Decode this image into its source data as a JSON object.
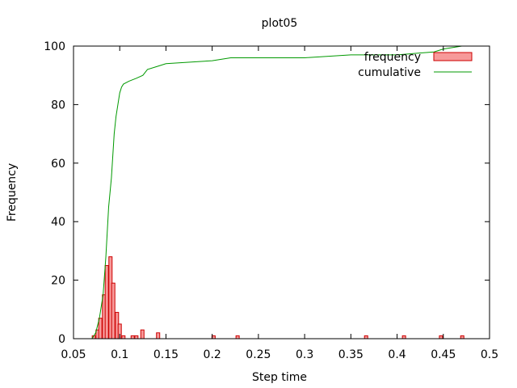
{
  "chart_data": {
    "type": "bar",
    "title": "plot05",
    "xlabel": "Step time",
    "ylabel": "Frequency",
    "xlim": [
      0.05,
      0.5
    ],
    "ylim": [
      0,
      100
    ],
    "grid": false,
    "legend_position": "top-right",
    "x_ticks": [
      "0.05",
      "0.1",
      "0.15",
      "0.2",
      "0.25",
      "0.3",
      "0.35",
      "0.4",
      "0.45",
      "0.5"
    ],
    "y_ticks": [
      "0",
      "20",
      "40",
      "60",
      "80",
      "100"
    ],
    "series": [
      {
        "name": "frequency",
        "type": "bar",
        "color": "#f79a9a",
        "edge_color": "#cc0000",
        "bin_width": 0.0035,
        "x": [
          0.072,
          0.076,
          0.079,
          0.083,
          0.086,
          0.09,
          0.093,
          0.097,
          0.1,
          0.104,
          0.114,
          0.118,
          0.1245,
          0.1415,
          0.2015,
          0.2275,
          0.3665,
          0.4075,
          0.4475,
          0.4705
        ],
        "values": [
          1,
          3,
          7,
          15,
          25,
          28,
          19,
          9,
          5,
          1,
          1,
          1,
          3,
          2,
          1,
          1,
          1,
          1,
          1,
          1
        ]
      },
      {
        "name": "cumulative",
        "type": "line",
        "color": "#009900",
        "x": [
          0.07,
          0.074,
          0.078,
          0.082,
          0.085,
          0.088,
          0.091,
          0.094,
          0.096,
          0.098,
          0.1,
          0.102,
          0.104,
          0.11,
          0.118,
          0.125,
          0.13,
          0.14,
          0.15,
          0.2,
          0.22,
          0.25,
          0.3,
          0.35,
          0.36,
          0.4,
          0.44,
          0.45,
          0.47
        ],
        "values": [
          0,
          2,
          7,
          15,
          28,
          45,
          55,
          70,
          76,
          80,
          84,
          86,
          87,
          88,
          89,
          90,
          92,
          93,
          94,
          95,
          96,
          96,
          96,
          97,
          97,
          97,
          98,
          99,
          100
        ]
      }
    ]
  }
}
